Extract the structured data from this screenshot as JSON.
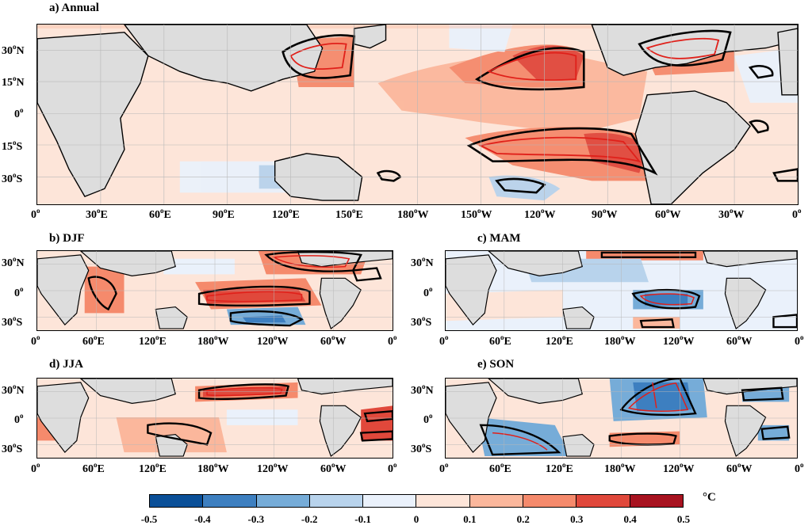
{
  "panels": {
    "annual": {
      "title": "a) Annual"
    },
    "djf": {
      "title": "b) DJF"
    },
    "mam": {
      "title": "c) MAM"
    },
    "jja": {
      "title": "d) JJA"
    },
    "son": {
      "title": "e) SON"
    }
  },
  "axis_labels": {
    "annual_x": [
      "0o",
      "30oE",
      "60oE",
      "90oE",
      "120oE",
      "150oE",
      "180oW",
      "150oW",
      "120oW",
      "90oW",
      "60oW",
      "30oW",
      "0o"
    ],
    "annual_y": [
      "30oN",
      "15oN",
      "0o",
      "15oS",
      "30oS"
    ],
    "season_x": [
      "0o",
      "60oE",
      "120oE",
      "180oW",
      "120oW",
      "60oW",
      "0o"
    ],
    "season_y": [
      "30oN",
      "0o",
      "30oS"
    ]
  },
  "colorbar": {
    "unit": "°C",
    "ticks": [
      "-0.5",
      "-0.4",
      "-0.3",
      "-0.2",
      "-0.1",
      "0",
      "0.1",
      "0.2",
      "0.3",
      "0.4",
      "0.5"
    ],
    "colors": [
      "#0a4f98",
      "#3d7fc0",
      "#76acd8",
      "#b8d3ec",
      "#eaf1fb",
      "#fde5d9",
      "#fbb79c",
      "#f58a6c",
      "#e0483b",
      "#a81320"
    ]
  },
  "map_colors": {
    "land": "#dddddd",
    "ocean_base": "#fde5d9"
  }
}
